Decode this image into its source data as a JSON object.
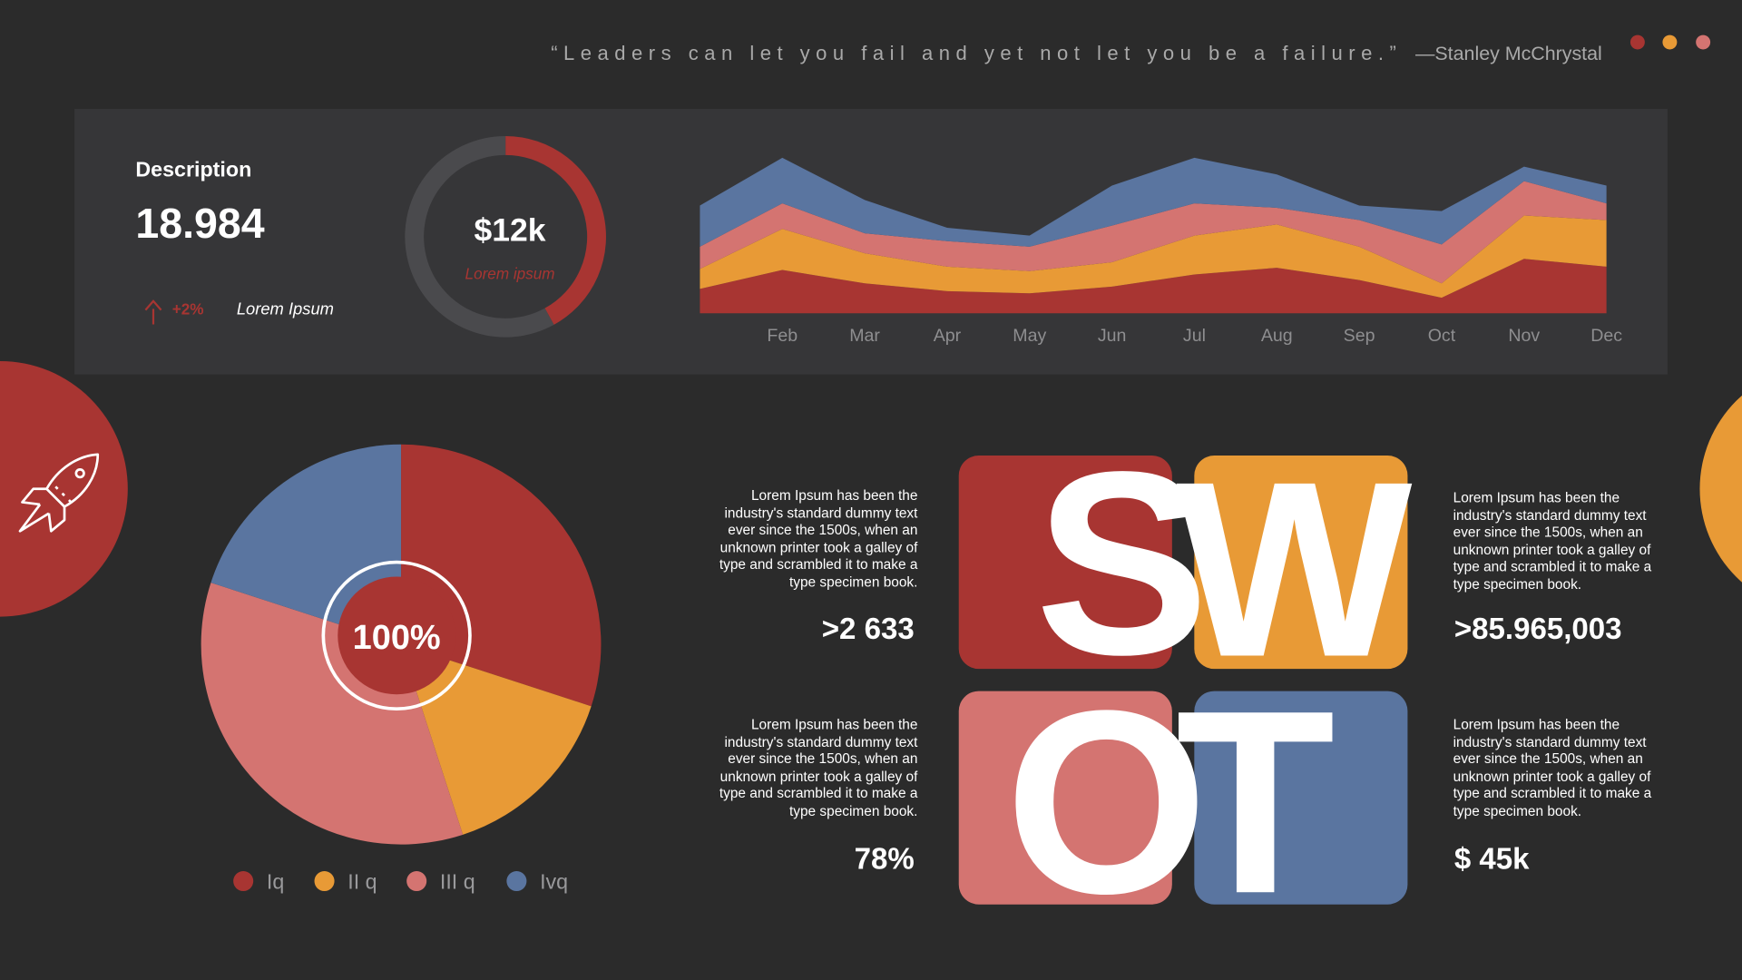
{
  "quote": {
    "text": "“Leaders can let you fail and yet not let you be a failure.”",
    "author": "—Stanley McChrystal"
  },
  "kpi": {
    "label": "Description",
    "value": "18.984",
    "change": "+2%",
    "change_label": "Lorem Ipsum"
  },
  "chart_data": [
    {
      "type": "donut",
      "center_label": "$12k",
      "center_sublabel": "Lorem ipsum",
      "values": [
        42,
        58
      ],
      "colors": [
        "#a83532",
        "#4a4a4d"
      ]
    },
    {
      "type": "area",
      "stacked": true,
      "categories": [
        null,
        "Feb",
        "Mar",
        "Apr",
        "May",
        "Jun",
        "Jul",
        "Aug",
        "Sep",
        "Oct",
        "Nov",
        "Dec"
      ],
      "series": [
        {
          "color": "#a83532",
          "values": [
            22,
            39,
            27,
            20,
            18,
            24,
            35,
            41,
            30,
            14,
            49,
            42
          ]
        },
        {
          "color": "#e89a36",
          "values": [
            18,
            37,
            27,
            22,
            20,
            22,
            35,
            39,
            30,
            13,
            39,
            42
          ]
        },
        {
          "color": "#d47471",
          "values": [
            20,
            23,
            18,
            23,
            22,
            33,
            29,
            15,
            24,
            35,
            31,
            15
          ]
        },
        {
          "color": "#5a75a0",
          "values": [
            37,
            41,
            30,
            12,
            10,
            36,
            41,
            30,
            13,
            30,
            13,
            16
          ]
        }
      ],
      "ylim": [
        0,
        150
      ]
    },
    {
      "type": "pie",
      "center_label": "100%",
      "categories": [
        "Iq",
        "II q",
        "III q",
        "Ivq"
      ],
      "values": [
        30,
        15,
        35,
        20
      ],
      "colors": [
        "#a83532",
        "#e89a36",
        "#d47471",
        "#5a75a0"
      ],
      "legend": "bottom"
    }
  ],
  "swot": {
    "letters": [
      "S",
      "W",
      "O",
      "T"
    ],
    "items": [
      {
        "text": "Lorem Ipsum has been the industry's standard dummy text ever since the 1500s, when an unknown printer took a galley of type and scrambled it to make a type specimen book.",
        "value": ">2 633"
      },
      {
        "text": "Lorem Ipsum has been the industry's standard dummy text ever since the 1500s, when an unknown printer took a galley of type and scrambled it to make a type specimen book.",
        "value": ">85.965,003"
      },
      {
        "text": "Lorem Ipsum has been the industry's standard dummy text ever since the 1500s, when an unknown printer took a galley of type and scrambled it to make a type specimen book.",
        "value": "78%"
      },
      {
        "text": "Lorem Ipsum has been the industry's standard dummy text ever since the 1500s, when an unknown printer took a galley of type and scrambled it to make a type specimen book.",
        "value": "$ 45k"
      }
    ]
  }
}
